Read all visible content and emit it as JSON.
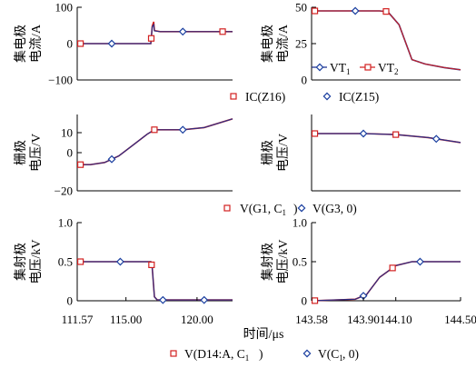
{
  "colors": {
    "series_red": "#d22020",
    "series_blue": "#1a2f8f",
    "marker_red": "#d22020",
    "marker_blue": "#1a3fa0"
  },
  "x_axis": {
    "label": "时间/μs",
    "left_ticks": [
      "111.57",
      "115.00",
      "120.00"
    ],
    "right_ticks": [
      "143.58",
      "143.90",
      "144.10",
      "144.50"
    ]
  },
  "legends": {
    "row1": {
      "red": "IC(Z16)",
      "blue": "IC(Z15)"
    },
    "row2": {
      "red": "V(G1, C1)",
      "blue": "V(G3, 0)"
    },
    "row3": {
      "red": "V(D14:A, C1)",
      "blue": "V(C1, 0)"
    },
    "inset": {
      "blue": "VT1",
      "red": "VT2"
    }
  },
  "chart_data": [
    {
      "type": "line",
      "id": "current-left",
      "ylabel": "集电极\n电流/A",
      "yticks": [
        "100",
        "0",
        "−100"
      ],
      "ylim": [
        -100,
        100
      ],
      "xlim": [
        111.57,
        122.5
      ],
      "series": [
        {
          "name": "IC(Z16)",
          "color": "#d22020",
          "x": [
            111.57,
            116.75,
            116.85,
            116.95,
            117.0,
            117.4,
            122.5
          ],
          "y": [
            0,
            0,
            48,
            60,
            36,
            33,
            33
          ]
        },
        {
          "name": "IC(Z15)",
          "color": "#1a2f8f",
          "x": [
            111.57,
            116.75,
            116.85,
            116.95,
            117.0,
            117.4,
            122.5
          ],
          "y": [
            0,
            0,
            46,
            52,
            35,
            33,
            33
          ]
        }
      ]
    },
    {
      "type": "line",
      "id": "current-right",
      "ylabel": "集电极\n电流/A",
      "yticks": [
        "50",
        "25",
        "0"
      ],
      "ylim": [
        0,
        50
      ],
      "xlim": [
        143.58,
        144.5
      ],
      "series": [
        {
          "name": "VT1",
          "color": "#1a2f8f",
          "x": [
            143.58,
            144.0,
            144.05,
            144.12,
            144.2,
            144.28,
            144.4,
            144.5
          ],
          "y": [
            47.5,
            47.5,
            47.0,
            38,
            14,
            11,
            8.5,
            7
          ]
        },
        {
          "name": "VT2",
          "color": "#d22020",
          "x": [
            143.58,
            144.0,
            144.05,
            144.12,
            144.2,
            144.28,
            144.4,
            144.5
          ],
          "y": [
            47.5,
            47.5,
            47.0,
            38,
            14,
            11,
            8.5,
            7
          ]
        }
      ]
    },
    {
      "type": "line",
      "id": "gate-left",
      "ylabel": "栅极\n电压/V",
      "yticks": [
        "10",
        "0",
        "−20"
      ],
      "ylim": [
        -20,
        15
      ],
      "xlim": [
        111.57,
        122.5
      ],
      "series": [
        {
          "name": "V(G1, C1)",
          "color": "#d22020",
          "x": [
            111.57,
            112.5,
            113.5,
            114.5,
            115.5,
            116.5,
            117.0,
            118.0,
            119.0,
            120.5,
            122.5
          ],
          "y": [
            -8,
            -8,
            -7,
            -4,
            1,
            6,
            8,
            8,
            8,
            9,
            13
          ]
        },
        {
          "name": "V(G3, 0)",
          "color": "#1a2f8f",
          "x": [
            111.57,
            112.5,
            113.5,
            114.5,
            115.5,
            116.5,
            117.0,
            118.0,
            119.0,
            120.5,
            122.5
          ],
          "y": [
            -8,
            -8,
            -7,
            -4,
            1,
            6,
            8,
            8,
            8,
            9,
            13
          ]
        }
      ]
    },
    {
      "type": "line",
      "id": "gate-right",
      "ylabel": "栅极\n电压/V",
      "yticks": [],
      "xlim": [
        143.58,
        144.5
      ],
      "series": [
        {
          "name": "V(G1, C1)",
          "color": "#d22020",
          "x": [
            143.58,
            143.9,
            144.1,
            144.3,
            144.5
          ],
          "y": [
            14.5,
            14.5,
            14.0,
            12.5,
            10.0
          ]
        },
        {
          "name": "V(G3, 0)",
          "color": "#1a2f8f",
          "x": [
            143.58,
            143.9,
            144.1,
            144.3,
            144.5
          ],
          "y": [
            14.5,
            14.5,
            14.0,
            12.5,
            10.0
          ]
        }
      ]
    },
    {
      "type": "line",
      "id": "ce-left",
      "ylabel": "集射极\n电压/kV",
      "yticks": [
        "1.0",
        "0.5",
        "0"
      ],
      "ylim": [
        0,
        1.0
      ],
      "xlim": [
        111.57,
        122.5
      ],
      "series": [
        {
          "name": "V(D14:A, C1)",
          "color": "#d22020",
          "x": [
            111.57,
            116.75,
            116.85,
            117.0,
            117.2,
            122.5
          ],
          "y": [
            0.5,
            0.5,
            0.42,
            0.05,
            0.01,
            0.01
          ]
        },
        {
          "name": "V(C1, 0)",
          "color": "#1a2f8f",
          "x": [
            111.57,
            116.75,
            116.85,
            117.0,
            117.2,
            122.5
          ],
          "y": [
            0.5,
            0.5,
            0.42,
            0.05,
            0.01,
            0.01
          ]
        }
      ]
    },
    {
      "type": "line",
      "id": "ce-right",
      "ylabel": "集射极\n电压/kV",
      "yticks": [
        "1.0",
        "0.5",
        "0"
      ],
      "ylim": [
        0,
        1.0
      ],
      "xlim": [
        143.58,
        144.5
      ],
      "series": [
        {
          "name": "V(D14:A, C1)",
          "color": "#d22020",
          "x": [
            143.58,
            143.85,
            143.92,
            144.0,
            144.1,
            144.2,
            144.3,
            144.5
          ],
          "y": [
            0.0,
            0.02,
            0.08,
            0.3,
            0.45,
            0.5,
            0.5,
            0.5
          ]
        },
        {
          "name": "V(C1, 0)",
          "color": "#1a2f8f",
          "x": [
            143.58,
            143.85,
            143.92,
            144.0,
            144.1,
            144.2,
            144.3,
            144.5
          ],
          "y": [
            0.0,
            0.02,
            0.08,
            0.3,
            0.45,
            0.5,
            0.5,
            0.5
          ]
        }
      ]
    }
  ]
}
